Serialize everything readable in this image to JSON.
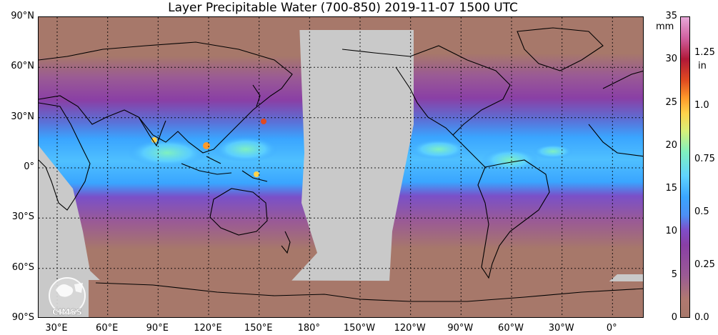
{
  "title": "Layer Precipitable Water (700-850)  2019-11-07 1500 UTC",
  "lat_labels": [
    "90°N",
    "60°N",
    "30°N",
    "0°",
    "30°S",
    "60°S",
    "90°S"
  ],
  "lon_labels": [
    "30°E",
    "60°E",
    "90°E",
    "120°E",
    "150°E",
    "180°",
    "150°W",
    "120°W",
    "90°W",
    "60°W",
    "30°W",
    "0°"
  ],
  "colorbar": {
    "mm_unit": "mm",
    "in_unit": "in",
    "mm_ticks": [
      "35",
      "30",
      "25",
      "20",
      "15",
      "10",
      "5",
      "0"
    ],
    "in_ticks": [
      "1.25",
      "1.0",
      "0.75",
      "0.5",
      "0.25",
      "0.0"
    ]
  },
  "logo_text": "CIMSS",
  "colors": {
    "dry": "#a7786a",
    "moist_purple": "#8a3fa5",
    "moist_blue": "#3aa5ff",
    "wet_cyan": "#7ff0c0",
    "no_data": "#c9c9c9",
    "coastline": "#000000"
  }
}
